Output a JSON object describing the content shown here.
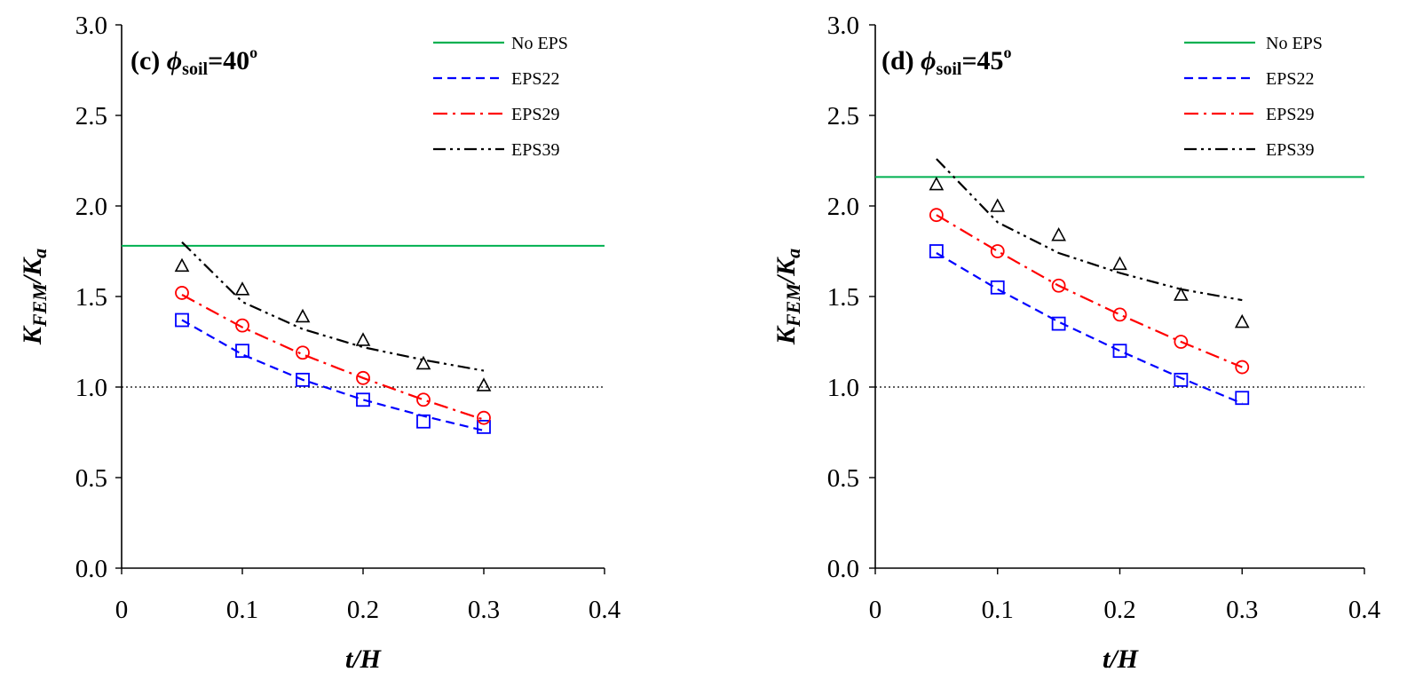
{
  "chart_data": [
    {
      "type": "line",
      "panel_label": "(c)",
      "title_phi": "ϕ",
      "title_sub": "soil",
      "title_value": "=40",
      "title_deg": "o",
      "xlabel": "t/H",
      "ylabel_base": "K",
      "ylabel_sub": "FEM",
      "ylabel_sep": "/K",
      "ylabel_sub2": "a",
      "xlim": [
        0,
        0.4
      ],
      "ylim": [
        0,
        3.0
      ],
      "xticks": [
        "0",
        "0.1",
        "0.2",
        "0.3",
        "0.4"
      ],
      "yticks": [
        "0.0",
        "0.5",
        "1.0",
        "1.5",
        "2.0",
        "2.5",
        "3.0"
      ],
      "reference_line": {
        "y": 1.0,
        "style": "dotted"
      },
      "legend_position": "top-right",
      "series": [
        {
          "name": "No EPS",
          "color": "#00b050",
          "dash": "solid",
          "line_x": [
            0,
            0.4
          ],
          "line_y": [
            1.78,
            1.78
          ],
          "points_x": [],
          "points_y": [],
          "marker": "none"
        },
        {
          "name": "EPS22",
          "color": "#0000ff",
          "dash": "dashed",
          "line_x": [
            0.05,
            0.1,
            0.15,
            0.2,
            0.25,
            0.3
          ],
          "line_y": [
            1.37,
            1.18,
            1.04,
            0.93,
            0.84,
            0.76
          ],
          "points_x": [
            0.05,
            0.1,
            0.15,
            0.2,
            0.25,
            0.3
          ],
          "points_y": [
            1.37,
            1.2,
            1.04,
            0.93,
            0.81,
            0.78
          ],
          "marker": "square"
        },
        {
          "name": "EPS29",
          "color": "#ff0000",
          "dash": "dashdot",
          "line_x": [
            0.05,
            0.1,
            0.15,
            0.2,
            0.25,
            0.3
          ],
          "line_y": [
            1.51,
            1.33,
            1.18,
            1.05,
            0.93,
            0.82
          ],
          "points_x": [
            0.05,
            0.1,
            0.15,
            0.2,
            0.25,
            0.3
          ],
          "points_y": [
            1.52,
            1.34,
            1.19,
            1.05,
            0.93,
            0.83
          ],
          "marker": "circle"
        },
        {
          "name": "EPS39",
          "color": "#000000",
          "dash": "dashdotdot",
          "line_x": [
            0.05,
            0.1,
            0.15,
            0.2,
            0.25,
            0.3
          ],
          "line_y": [
            1.8,
            1.47,
            1.32,
            1.22,
            1.15,
            1.09
          ],
          "points_x": [
            0.05,
            0.1,
            0.15,
            0.2,
            0.25,
            0.3
          ],
          "points_y": [
            1.67,
            1.54,
            1.39,
            1.26,
            1.13,
            1.01
          ],
          "marker": "triangle"
        }
      ]
    },
    {
      "type": "line",
      "panel_label": "(d)",
      "title_phi": "ϕ",
      "title_sub": "soil",
      "title_value": "=45",
      "title_deg": "o",
      "xlabel": "t/H",
      "ylabel_base": "K",
      "ylabel_sub": "FEM",
      "ylabel_sep": "/K",
      "ylabel_sub2": "a",
      "xlim": [
        0,
        0.4
      ],
      "ylim": [
        0,
        3.0
      ],
      "xticks": [
        "0",
        "0.1",
        "0.2",
        "0.3",
        "0.4"
      ],
      "yticks": [
        "0.0",
        "0.5",
        "1.0",
        "1.5",
        "2.0",
        "2.5",
        "3.0"
      ],
      "reference_line": {
        "y": 1.0,
        "style": "dotted"
      },
      "legend_position": "top-right",
      "series": [
        {
          "name": "No EPS",
          "color": "#00b050",
          "dash": "solid",
          "line_x": [
            0,
            0.4
          ],
          "line_y": [
            2.16,
            2.16
          ],
          "points_x": [],
          "points_y": [],
          "marker": "none"
        },
        {
          "name": "EPS22",
          "color": "#0000ff",
          "dash": "dashed",
          "line_x": [
            0.05,
            0.1,
            0.15,
            0.2,
            0.25,
            0.3
          ],
          "line_y": [
            1.74,
            1.54,
            1.36,
            1.2,
            1.05,
            0.91
          ],
          "points_x": [
            0.05,
            0.1,
            0.15,
            0.2,
            0.25,
            0.3
          ],
          "points_y": [
            1.75,
            1.55,
            1.35,
            1.2,
            1.04,
            0.94
          ],
          "marker": "square"
        },
        {
          "name": "EPS29",
          "color": "#ff0000",
          "dash": "dashdot",
          "line_x": [
            0.05,
            0.1,
            0.15,
            0.2,
            0.25,
            0.3
          ],
          "line_y": [
            1.95,
            1.75,
            1.56,
            1.4,
            1.25,
            1.11
          ],
          "points_x": [
            0.05,
            0.1,
            0.15,
            0.2,
            0.25,
            0.3
          ],
          "points_y": [
            1.95,
            1.75,
            1.56,
            1.4,
            1.25,
            1.11
          ],
          "marker": "circle"
        },
        {
          "name": "EPS39",
          "color": "#000000",
          "dash": "dashdotdot",
          "line_x": [
            0.05,
            0.1,
            0.15,
            0.2,
            0.25,
            0.3
          ],
          "line_y": [
            2.26,
            1.91,
            1.74,
            1.63,
            1.54,
            1.48
          ],
          "points_x": [
            0.05,
            0.1,
            0.15,
            0.2,
            0.25,
            0.3
          ],
          "points_y": [
            2.12,
            2.0,
            1.84,
            1.68,
            1.51,
            1.36
          ],
          "marker": "triangle"
        }
      ]
    }
  ]
}
